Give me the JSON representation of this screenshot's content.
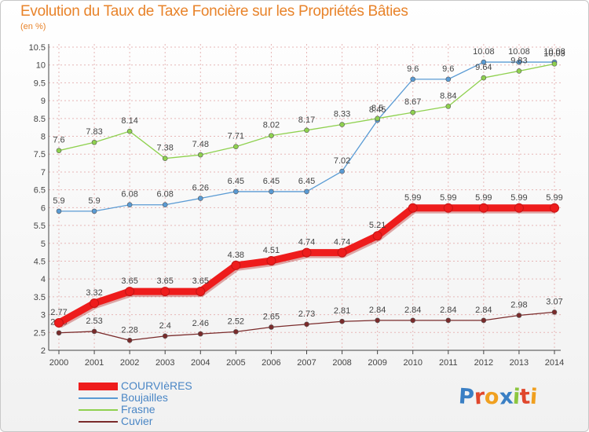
{
  "title": "Evolution du Taux de Taxe Foncière sur les Propriétés Bâties",
  "subtitle": "(en %)",
  "logo": {
    "text": "Proxiti",
    "colors": [
      "#3a7fc4",
      "#e0472c",
      "#f0a020",
      "#3a7fc4",
      "#8cc63f",
      "#e0472c",
      "#f0a020"
    ]
  },
  "colors": {
    "title": "#e8832a",
    "grid": "#e6b6b6",
    "axis": "#444444",
    "legend_text": "#4a86c5"
  },
  "chart_data": {
    "type": "line",
    "x": [
      2000,
      2001,
      2002,
      2003,
      2004,
      2005,
      2006,
      2007,
      2008,
      2009,
      2010,
      2011,
      2012,
      2013,
      2014
    ],
    "ylim": [
      2,
      10.5
    ],
    "yticks": [
      2,
      2.5,
      3,
      3.5,
      4,
      4.5,
      5,
      5.5,
      6,
      6.5,
      7,
      7.5,
      8,
      8.5,
      9,
      9.5,
      10,
      10.5
    ],
    "grid": true,
    "legend_position": "bottom-left",
    "series": [
      {
        "name": "Boujailles",
        "color": "#5a9bd4",
        "width": 1.3,
        "values": [
          5.9,
          5.9,
          6.08,
          6.08,
          6.26,
          6.45,
          6.45,
          6.45,
          7.02,
          8.45,
          9.6,
          9.6,
          10.08,
          10.08,
          10.08
        ],
        "labels": [
          "5.9",
          "5.9",
          "6.08",
          "6.08",
          "6.26",
          "6.45",
          "6.45",
          "6.45",
          "7.02",
          "8.45",
          "9.6",
          "9.6",
          "10.08",
          "10.08",
          "10.08"
        ]
      },
      {
        "name": "Frasne",
        "color": "#8fd14f",
        "width": 1.3,
        "values": [
          7.6,
          7.83,
          8.14,
          7.38,
          7.48,
          7.71,
          8.02,
          8.17,
          8.33,
          8.5,
          8.67,
          8.84,
          9.64,
          9.83,
          10.03
        ],
        "labels": [
          "7.6",
          "7.83",
          "8.14",
          "7.38",
          "7.48",
          "7.71",
          "8.02",
          "8.17",
          "8.33",
          "8.5",
          "8.67",
          "8.84",
          "9.64",
          "9.83",
          "10.03"
        ]
      },
      {
        "name": "Cuvier",
        "color": "#7a2b2b",
        "width": 1.3,
        "values": [
          2.49,
          2.53,
          2.28,
          2.4,
          2.46,
          2.52,
          2.65,
          2.73,
          2.81,
          2.84,
          2.84,
          2.84,
          2.84,
          2.98,
          3.07
        ],
        "labels": [
          "2.49",
          "2.53",
          "2.28",
          "2.4",
          "2.46",
          "2.52",
          "2.65",
          "2.73",
          "2.81",
          "2.84",
          "2.84",
          "2.84",
          "2.84",
          "2.98",
          "3.07"
        ]
      },
      {
        "name": "COURVIèRES",
        "color": "#ee1c1c",
        "width": 9,
        "values": [
          2.77,
          3.32,
          3.65,
          3.65,
          3.65,
          4.38,
          4.51,
          4.74,
          4.74,
          5.21,
          5.99,
          5.99,
          5.99,
          5.99,
          5.99
        ],
        "labels": [
          "2.77",
          "3.32",
          "3.65",
          "3.65",
          "3.65",
          "4.38",
          "4.51",
          "4.74",
          "4.74",
          "5.21",
          "5.99",
          "5.99",
          "5.99",
          "5.99",
          "5.99"
        ]
      }
    ]
  },
  "legend": [
    {
      "name": "COURVIèRES",
      "color": "#ee1c1c",
      "thick": true
    },
    {
      "name": "Boujailles",
      "color": "#5a9bd4",
      "thick": false
    },
    {
      "name": "Frasne",
      "color": "#8fd14f",
      "thick": false
    },
    {
      "name": "Cuvier",
      "color": "#7a2b2b",
      "thick": false
    }
  ]
}
